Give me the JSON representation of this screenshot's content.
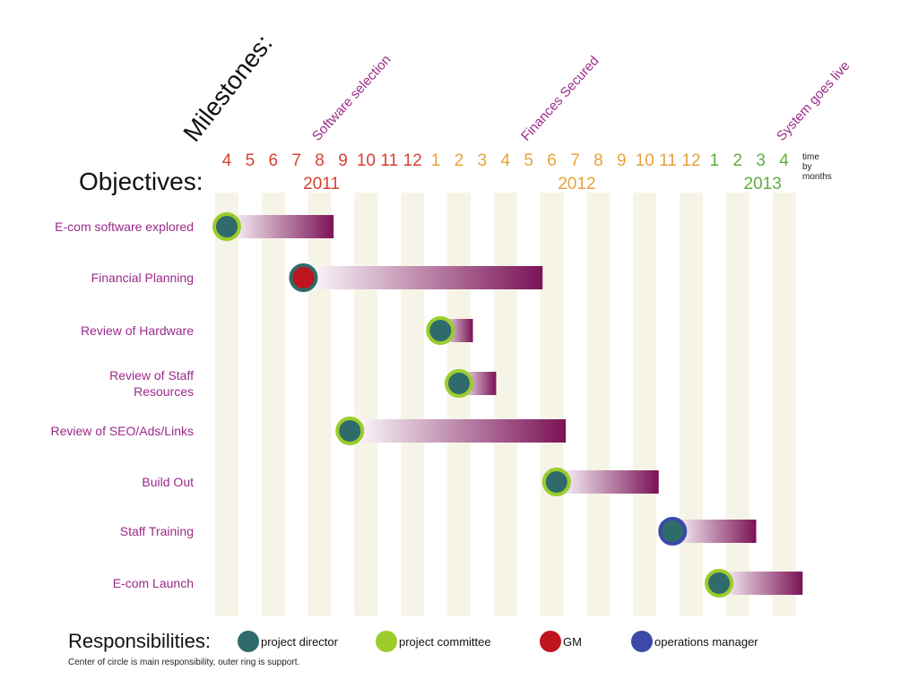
{
  "headings": {
    "milestones": "Milestones:",
    "objectives": "Objectives:",
    "responsibilities": "Responsibilities:",
    "footnote": "Center of circle is main responsibility, outer ring is support.",
    "time_note": [
      "time",
      "by",
      "months"
    ]
  },
  "colors": {
    "stripe": "#f6f4e6",
    "bar_end": "#7b1257",
    "bar_start": "#ffffff",
    "year_2011": "#d9412f",
    "year_2012": "#e8a23c",
    "year_2013": "#5fae3d",
    "milestone_text": "#9b2a8a",
    "objective_text": "#9b2a8a",
    "project_director": "#2f6b6b",
    "project_committee": "#9ccc2c",
    "gm": "#c0141e",
    "operations_manager": "#3b4aa8"
  },
  "timeline": {
    "months": [
      {
        "label": "4",
        "year": "2011"
      },
      {
        "label": "5",
        "year": "2011"
      },
      {
        "label": "6",
        "year": "2011"
      },
      {
        "label": "7",
        "year": "2011"
      },
      {
        "label": "8",
        "year": "2011"
      },
      {
        "label": "9",
        "year": "2011"
      },
      {
        "label": "10",
        "year": "2011"
      },
      {
        "label": "11",
        "year": "2011"
      },
      {
        "label": "12",
        "year": "2011"
      },
      {
        "label": "1",
        "year": "2012"
      },
      {
        "label": "2",
        "year": "2012"
      },
      {
        "label": "3",
        "year": "2012"
      },
      {
        "label": "4",
        "year": "2012"
      },
      {
        "label": "5",
        "year": "2012"
      },
      {
        "label": "6",
        "year": "2012"
      },
      {
        "label": "7",
        "year": "2012"
      },
      {
        "label": "8",
        "year": "2012"
      },
      {
        "label": "9",
        "year": "2012"
      },
      {
        "label": "10",
        "year": "2012"
      },
      {
        "label": "11",
        "year": "2012"
      },
      {
        "label": "12",
        "year": "2012"
      },
      {
        "label": "1",
        "year": "2013"
      },
      {
        "label": "2",
        "year": "2013"
      },
      {
        "label": "3",
        "year": "2013"
      },
      {
        "label": "4",
        "year": "2013"
      }
    ],
    "years": [
      {
        "label": "2011",
        "month_index": 4
      },
      {
        "label": "2012",
        "month_index": 15
      },
      {
        "label": "2013",
        "month_index": 23
      }
    ]
  },
  "milestones": [
    {
      "label": "Software selection",
      "month_index": 4
    },
    {
      "label": "Finances Secured",
      "month_index": 13
    },
    {
      "label": "System goes live",
      "month_index": 24
    }
  ],
  "objectives": [
    {
      "label": [
        "E-com software explored"
      ],
      "start": 0,
      "end": 4.6,
      "main": "project_director",
      "support": "project_committee"
    },
    {
      "label": [
        "Financial Planning"
      ],
      "start": 3.3,
      "end": 13.6,
      "main": "gm",
      "support": "project_director"
    },
    {
      "label": [
        "Review of Hardware"
      ],
      "start": 9.2,
      "end": 10.6,
      "main": "project_director",
      "support": "project_committee"
    },
    {
      "label": [
        "Review of Staff",
        "Resources"
      ],
      "start": 10,
      "end": 11.6,
      "main": "project_director",
      "support": "project_committee"
    },
    {
      "label": [
        "Review of SEO/Ads/Links"
      ],
      "start": 5.3,
      "end": 14.6,
      "main": "project_director",
      "support": "project_committee"
    },
    {
      "label": [
        "Build Out"
      ],
      "start": 14.2,
      "end": 18.6,
      "main": "project_director",
      "support": "project_committee"
    },
    {
      "label": [
        "Staff Training"
      ],
      "start": 19.2,
      "end": 22.8,
      "main": "project_director",
      "support": "operations_manager"
    },
    {
      "label": [
        "E-com Launch"
      ],
      "start": 21.2,
      "end": 24.8,
      "main": "project_director",
      "support": "project_committee"
    }
  ],
  "legend": [
    {
      "key": "project_director",
      "label": "project director"
    },
    {
      "key": "project_committee",
      "label": "project committee"
    },
    {
      "key": "gm",
      "label": "GM"
    },
    {
      "key": "operations_manager",
      "label": "operations manager"
    }
  ]
}
